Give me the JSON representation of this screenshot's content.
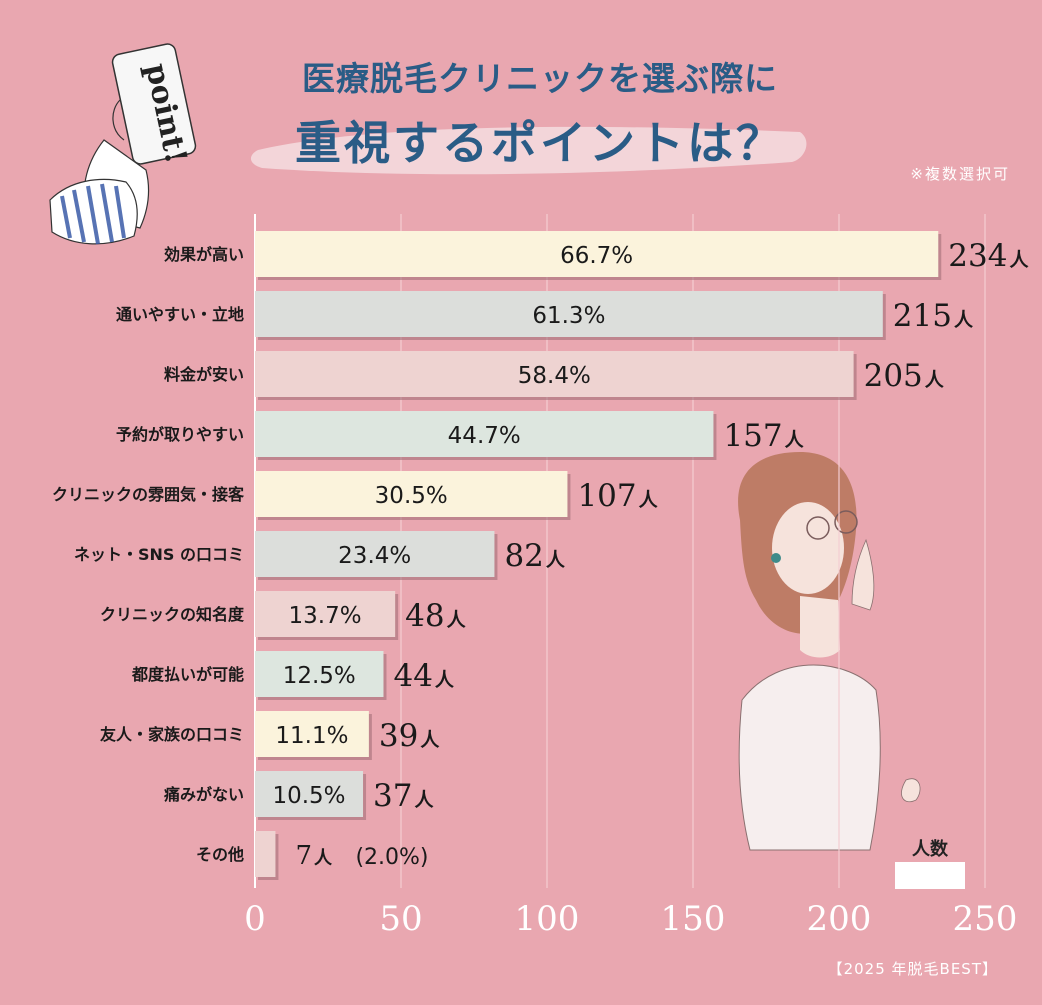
{
  "title": {
    "line1": "医療脱毛クリニックを選ぶ際に",
    "line2": "重視するポイントは？"
  },
  "note": "※複数選択可",
  "source": "【2025 年脱毛BEST】",
  "phone_text": "point!",
  "legend": {
    "label": "人数",
    "color": "#ffffff"
  },
  "colors": {
    "background": "#e9a7b0",
    "title": "#2a5c86",
    "grid": "#f4cdd2",
    "axis_tick": "#ffffff",
    "bar_shadow": "#9c6a72",
    "value_text": "#1a1a1a"
  },
  "chart_data": {
    "type": "bar",
    "orientation": "horizontal",
    "xlim": [
      0,
      250
    ],
    "xticks": [
      0,
      50,
      100,
      150,
      200,
      250
    ],
    "grid": true,
    "unit": "人",
    "categories": [
      "効果が高い",
      "通いやすい・立地",
      "料金が安い",
      "予約が取りやすい",
      "クリニックの雰囲気・接客",
      "ネット・SNS の口コミ",
      "クリニックの知名度",
      "都度払いが可能",
      "友人・家族の口コミ",
      "痛みがない",
      "その他"
    ],
    "values": [
      234,
      215,
      205,
      157,
      107,
      82,
      48,
      44,
      39,
      37,
      7
    ],
    "percents": [
      "66.7%",
      "61.3%",
      "58.4%",
      "44.7%",
      "30.5%",
      "23.4%",
      "13.7%",
      "12.5%",
      "11.1%",
      "10.5%",
      "(2.0%)"
    ],
    "bar_colors": [
      "#fbf3dc",
      "#dcdedb",
      "#eed3d1",
      "#dde6df",
      "#fbf3dc",
      "#dcdedb",
      "#eed3d1",
      "#dde6df",
      "#fbf3dc",
      "#dcdedb",
      "#eed3d1"
    ]
  }
}
